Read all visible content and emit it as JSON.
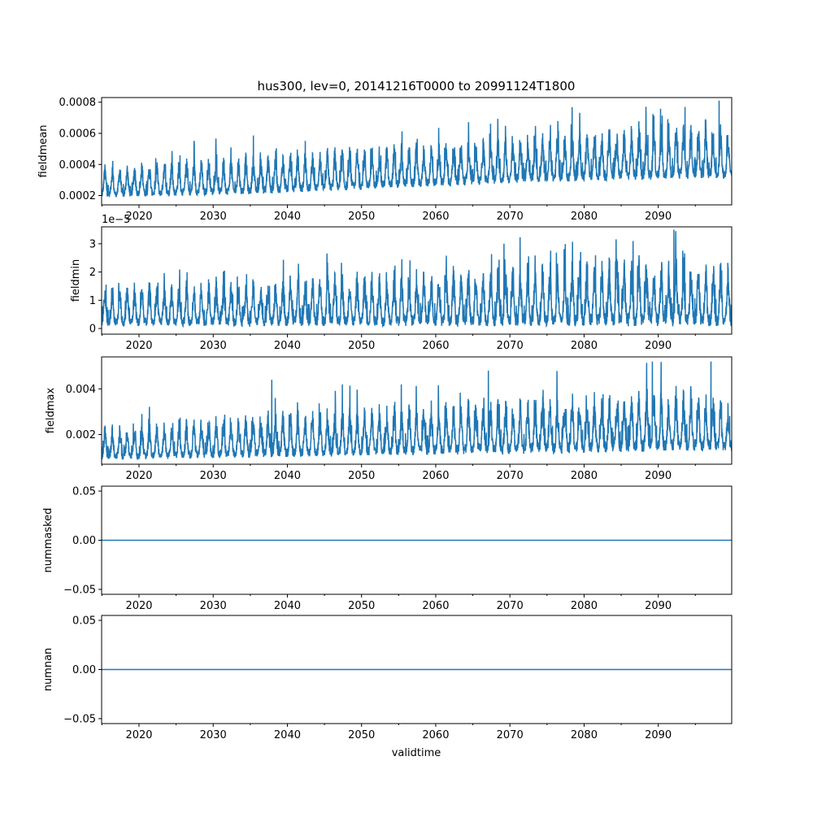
{
  "title": "hus300, lev=0, 20141216T0000 to 20991124T1800",
  "xlabel": "validtime",
  "colors": {
    "line": "#1f77b4",
    "axes": "#000000",
    "background": "#ffffff"
  },
  "chart_data": [
    {
      "type": "line",
      "ylabel": "fieldmean",
      "xlim": [
        2014.96,
        2099.9
      ],
      "ylim": [
        0.00014,
        0.00083
      ],
      "xticks": [
        2020,
        2030,
        2040,
        2050,
        2060,
        2070,
        2080,
        2090
      ],
      "yticks": [
        0.0002,
        0.0004,
        0.0006,
        0.0008
      ],
      "ytick_labels": [
        "0.0002",
        "0.0004",
        "0.0006",
        "0.0008"
      ],
      "offset_text": "",
      "envelope": {
        "x": [
          2015,
          2025,
          2035,
          2045,
          2055,
          2065,
          2075,
          2085,
          2095,
          2099.9
        ],
        "lower": [
          0.00019,
          0.0002,
          0.00021,
          0.00023,
          0.00025,
          0.00027,
          0.00029,
          0.0003,
          0.00031,
          0.00031
        ],
        "upper": [
          0.00041,
          0.00045,
          0.00049,
          0.00052,
          0.00055,
          0.00059,
          0.00063,
          0.00067,
          0.0007,
          0.00061
        ]
      },
      "peaks": [
        {
          "x": 2098.2,
          "y": 0.00081
        },
        {
          "x": 2093.6,
          "y": 0.00077
        }
      ]
    },
    {
      "type": "line",
      "ylabel": "fieldmin",
      "xlim": [
        2014.96,
        2099.9
      ],
      "ylim": [
        -0.2,
        3.6
      ],
      "xticks": [
        2020,
        2030,
        2040,
        2050,
        2060,
        2070,
        2080,
        2090
      ],
      "yticks": [
        0,
        1,
        2,
        3
      ],
      "ytick_labels": [
        "0",
        "1",
        "2",
        "3"
      ],
      "offset_text": "1e−5",
      "envelope": {
        "x": [
          2015,
          2025,
          2035,
          2045,
          2055,
          2065,
          2075,
          2085,
          2095,
          2099.9
        ],
        "lower": [
          0.1,
          0.1,
          0.1,
          0.1,
          0.1,
          0.1,
          0.1,
          0.1,
          0.1,
          0.1
        ],
        "upper": [
          1.7,
          1.8,
          1.9,
          2.1,
          2.2,
          2.4,
          2.5,
          2.7,
          2.7,
          2.4
        ]
      },
      "peaks": [
        {
          "x": 2092.1,
          "y": 3.5
        },
        {
          "x": 2069.2,
          "y": 3.0
        },
        {
          "x": 2086.6,
          "y": 3.1
        }
      ]
    },
    {
      "type": "line",
      "ylabel": "fieldmax",
      "xlim": [
        2014.96,
        2099.9
      ],
      "ylim": [
        0.0007,
        0.0054
      ],
      "xticks": [
        2020,
        2030,
        2040,
        2050,
        2060,
        2070,
        2080,
        2090
      ],
      "yticks": [
        0.002,
        0.004
      ],
      "ytick_labels": [
        "0.002",
        "0.004"
      ],
      "offset_text": "",
      "envelope": {
        "x": [
          2015,
          2025,
          2035,
          2045,
          2055,
          2065,
          2075,
          2085,
          2095,
          2099.9
        ],
        "lower": [
          0.0009,
          0.00095,
          0.001,
          0.00105,
          0.0011,
          0.00115,
          0.0012,
          0.00125,
          0.0013,
          0.0013
        ],
        "upper": [
          0.0025,
          0.0028,
          0.0031,
          0.0033,
          0.0035,
          0.0037,
          0.0039,
          0.0041,
          0.0043,
          0.0034
        ]
      },
      "peaks": [
        {
          "x": 2097.1,
          "y": 0.0052
        },
        {
          "x": 2089.2,
          "y": 0.0052
        },
        {
          "x": 2067.1,
          "y": 0.0048
        },
        {
          "x": 2037.9,
          "y": 0.0044
        }
      ]
    },
    {
      "type": "line",
      "ylabel": "nummasked",
      "xlim": [
        2014.96,
        2099.9
      ],
      "ylim": [
        -0.055,
        0.055
      ],
      "xticks": [
        2020,
        2030,
        2040,
        2050,
        2060,
        2070,
        2080,
        2090
      ],
      "yticks": [
        -0.05,
        0.0,
        0.05
      ],
      "ytick_labels": [
        "−0.05",
        "0.00",
        "0.05"
      ],
      "offset_text": "",
      "constant": 0.0
    },
    {
      "type": "line",
      "ylabel": "numnan",
      "xlim": [
        2014.96,
        2099.9
      ],
      "ylim": [
        -0.055,
        0.055
      ],
      "xticks": [
        2020,
        2030,
        2040,
        2050,
        2060,
        2070,
        2080,
        2090
      ],
      "yticks": [
        -0.05,
        0.0,
        0.05
      ],
      "ytick_labels": [
        "−0.05",
        "0.00",
        "0.05"
      ],
      "offset_text": "",
      "constant": 0.0
    }
  ]
}
